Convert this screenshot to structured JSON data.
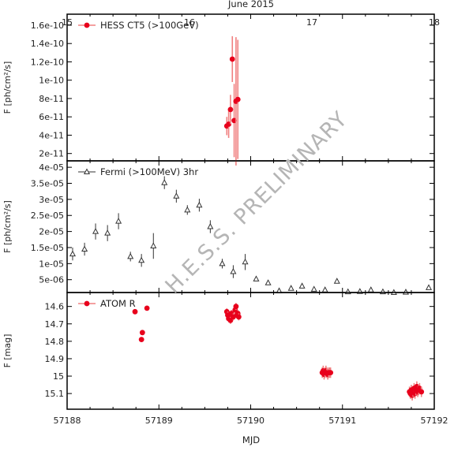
{
  "figure": {
    "top_axis_title": "June 2015",
    "bottom_axis_title": "MJD",
    "watermark": "H.E.S.S. PRELIMINARY"
  },
  "top_axis": {
    "ticks": [
      "15",
      "16",
      "17",
      "18"
    ]
  },
  "colors": {
    "red": "#e8001c",
    "red_light": "#f08080",
    "dark": "#333333"
  },
  "chart_data": [
    {
      "type": "scatter",
      "panel": "HESS",
      "ylabel": "F [ph/cm²/s]",
      "ylim": [
        1.2e-11,
        1.72e-10
      ],
      "y_tick_labels": [
        "2e-11",
        "4e-11",
        "6e-11",
        "8e-11",
        "1e-10",
        "1.2e-10",
        "1.4e-10",
        "1.6e-10"
      ],
      "y_tick_values": [
        2e-11,
        4e-11,
        6e-11,
        8e-11,
        1e-10,
        1.2e-10,
        1.4e-10,
        1.6e-10
      ],
      "xlim": [
        57188,
        57192
      ],
      "legend_position": "top-left",
      "series": [
        {
          "name": "HESS CT5 (>100GeV)",
          "marker": "filled-circle",
          "points": [
            {
              "x": 57189.74,
              "y": 5e-11,
              "err": 1e-11
            },
            {
              "x": 57189.76,
              "y": 5.2e-11,
              "err": 1.5e-11
            },
            {
              "x": 57189.78,
              "y": 6.8e-11,
              "err": 1.6e-11
            },
            {
              "x": 57189.8,
              "y": 1.23e-10,
              "err": 2.5e-11
            },
            {
              "x": 57189.82,
              "y": 5.6e-11,
              "err": 4e-11
            },
            {
              "x": 57189.84,
              "y": 7.7e-11,
              "err": 7e-11
            },
            {
              "x": 57189.86,
              "y": 7.9e-11,
              "err": 6.5e-11
            }
          ]
        }
      ]
    },
    {
      "type": "scatter",
      "panel": "Fermi",
      "ylabel": "F [ph/cm²/s]",
      "ylim": [
        1e-06,
        4.2e-05
      ],
      "y_tick_labels": [
        "5e-06",
        "1e-05",
        "1.5e-05",
        "2e-05",
        "2.5e-05",
        "3e-05",
        "3.5e-05",
        "4e-05"
      ],
      "y_tick_values": [
        5e-06,
        1e-05,
        1.5e-05,
        2e-05,
        2.5e-05,
        3e-05,
        3.5e-05,
        4e-05
      ],
      "xlim": [
        57188,
        57192
      ],
      "legend_position": "top-left",
      "series": [
        {
          "name": "Fermi (>100MeV) 3hr",
          "marker": "triangle",
          "points": [
            {
              "x": 57188.06,
              "y": 1.3e-05,
              "err": 2e-06
            },
            {
              "x": 57188.19,
              "y": 1.45e-05,
              "err": 2e-06
            },
            {
              "x": 57188.31,
              "y": 2e-05,
              "err": 2.5e-06
            },
            {
              "x": 57188.44,
              "y": 1.95e-05,
              "err": 2.5e-06
            },
            {
              "x": 57188.56,
              "y": 2.32e-05,
              "err": 2.5e-06
            },
            {
              "x": 57188.69,
              "y": 1.22e-05,
              "err": 1.5e-06
            },
            {
              "x": 57188.81,
              "y": 1.1e-05,
              "err": 2e-06
            },
            {
              "x": 57188.94,
              "y": 1.55e-05,
              "err": 4e-06
            },
            {
              "x": 57189.06,
              "y": 3.52e-05,
              "err": 2e-06
            },
            {
              "x": 57189.19,
              "y": 3.1e-05,
              "err": 2e-06
            },
            {
              "x": 57189.31,
              "y": 2.67e-05,
              "err": 1.5e-06
            },
            {
              "x": 57189.44,
              "y": 2.82e-05,
              "err": 2e-06
            },
            {
              "x": 57189.56,
              "y": 2.15e-05,
              "err": 2e-06
            },
            {
              "x": 57189.69,
              "y": 1e-05,
              "err": 1.5e-06
            },
            {
              "x": 57189.81,
              "y": 7.5e-06,
              "err": 2e-06
            },
            {
              "x": 57189.94,
              "y": 1.05e-05,
              "err": 2.5e-06
            },
            {
              "x": 57190.06,
              "y": 5.2e-06,
              "err": 3e-07
            },
            {
              "x": 57190.19,
              "y": 4e-06,
              "err": 3e-07
            },
            {
              "x": 57190.31,
              "y": 1.5e-06,
              "err": 0
            },
            {
              "x": 57190.44,
              "y": 2.3e-06,
              "err": 0
            },
            {
              "x": 57190.56,
              "y": 3e-06,
              "err": 0
            },
            {
              "x": 57190.69,
              "y": 2e-06,
              "err": 0
            },
            {
              "x": 57190.81,
              "y": 1.8e-06,
              "err": 0
            },
            {
              "x": 57190.94,
              "y": 4.5e-06,
              "err": 0
            },
            {
              "x": 57191.06,
              "y": 1.2e-06,
              "err": 0
            },
            {
              "x": 57191.19,
              "y": 1.3e-06,
              "err": 0
            },
            {
              "x": 57191.31,
              "y": 1.8e-06,
              "err": 0
            },
            {
              "x": 57191.44,
              "y": 1.2e-06,
              "err": 0
            },
            {
              "x": 57191.56,
              "y": 1e-06,
              "err": 0
            },
            {
              "x": 57191.69,
              "y": 1.1e-06,
              "err": 0
            },
            {
              "x": 57191.94,
              "y": 2.5e-06,
              "err": 0
            }
          ]
        }
      ]
    },
    {
      "type": "scatter",
      "panel": "ATOM",
      "ylabel": "F [mag]",
      "ylim": [
        14.52,
        15.19
      ],
      "y_inverted": true,
      "y_tick_labels": [
        "14.6",
        "14.7",
        "14.8",
        "14.9",
        "15",
        "15.1"
      ],
      "y_tick_values": [
        14.6,
        14.7,
        14.8,
        14.9,
        15.0,
        15.1
      ],
      "xlim": [
        57188,
        57192
      ],
      "x_tick_labels": [
        "57188",
        "57189",
        "57190",
        "57191",
        "57192"
      ],
      "x_tick_values": [
        57188,
        57189,
        57190,
        57191,
        57192
      ],
      "legend_position": "top-left",
      "series": [
        {
          "name": "ATOM R",
          "marker": "filled-circle",
          "points": [
            {
              "x": 57188.74,
              "y": 14.63,
              "err": 0.01
            },
            {
              "x": 57188.82,
              "y": 14.75,
              "err": 0.01
            },
            {
              "x": 57188.81,
              "y": 14.79,
              "err": 0.01
            },
            {
              "x": 57188.87,
              "y": 14.61,
              "err": 0.01
            },
            {
              "x": 57189.74,
              "y": 14.63,
              "err": 0.02
            },
            {
              "x": 57189.75,
              "y": 14.65,
              "err": 0.02
            },
            {
              "x": 57189.76,
              "y": 14.67,
              "err": 0.02
            },
            {
              "x": 57189.77,
              "y": 14.66,
              "err": 0.02
            },
            {
              "x": 57189.78,
              "y": 14.68,
              "err": 0.02
            },
            {
              "x": 57189.79,
              "y": 14.64,
              "err": 0.02
            },
            {
              "x": 57189.81,
              "y": 14.66,
              "err": 0.02
            },
            {
              "x": 57189.83,
              "y": 14.62,
              "err": 0.02
            },
            {
              "x": 57189.84,
              "y": 14.6,
              "err": 0.02
            },
            {
              "x": 57189.85,
              "y": 14.65,
              "err": 0.02
            },
            {
              "x": 57189.86,
              "y": 14.64,
              "err": 0.02
            },
            {
              "x": 57189.87,
              "y": 14.66,
              "err": 0.02
            },
            {
              "x": 57190.78,
              "y": 14.98,
              "err": 0.03
            },
            {
              "x": 57190.79,
              "y": 14.97,
              "err": 0.03
            },
            {
              "x": 57190.8,
              "y": 14.99,
              "err": 0.03
            },
            {
              "x": 57190.81,
              "y": 14.98,
              "err": 0.03
            },
            {
              "x": 57190.82,
              "y": 14.97,
              "err": 0.03
            },
            {
              "x": 57190.83,
              "y": 14.98,
              "err": 0.03
            },
            {
              "x": 57190.84,
              "y": 14.99,
              "err": 0.03
            },
            {
              "x": 57190.85,
              "y": 14.98,
              "err": 0.03
            },
            {
              "x": 57190.86,
              "y": 14.98,
              "err": 0.03
            },
            {
              "x": 57190.87,
              "y": 14.98,
              "err": 0.03
            },
            {
              "x": 57191.73,
              "y": 15.09,
              "err": 0.03
            },
            {
              "x": 57191.74,
              "y": 15.1,
              "err": 0.03
            },
            {
              "x": 57191.75,
              "y": 15.08,
              "err": 0.03
            },
            {
              "x": 57191.76,
              "y": 15.11,
              "err": 0.03
            },
            {
              "x": 57191.77,
              "y": 15.09,
              "err": 0.03
            },
            {
              "x": 57191.78,
              "y": 15.07,
              "err": 0.03
            },
            {
              "x": 57191.79,
              "y": 15.1,
              "err": 0.03
            },
            {
              "x": 57191.8,
              "y": 15.08,
              "err": 0.03
            },
            {
              "x": 57191.81,
              "y": 15.06,
              "err": 0.03
            },
            {
              "x": 57191.82,
              "y": 15.09,
              "err": 0.03
            },
            {
              "x": 57191.83,
              "y": 15.08,
              "err": 0.03
            },
            {
              "x": 57191.84,
              "y": 15.07,
              "err": 0.03
            },
            {
              "x": 57191.86,
              "y": 15.09,
              "err": 0.03
            }
          ]
        }
      ]
    }
  ]
}
